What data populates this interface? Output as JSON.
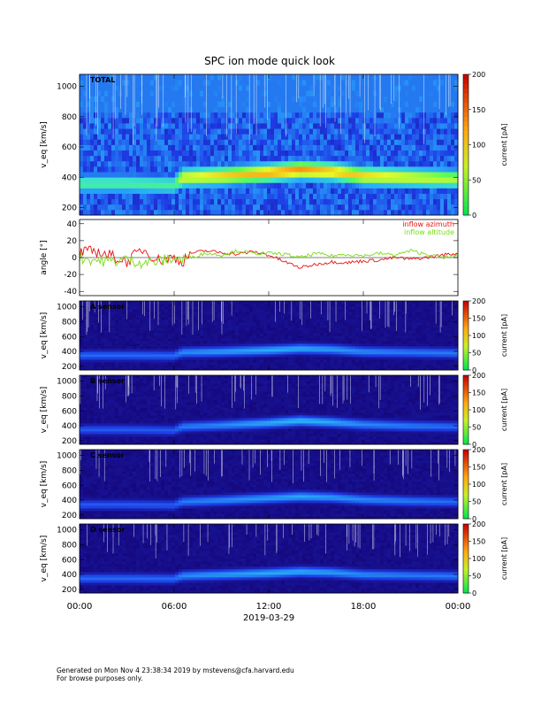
{
  "title": "SPC ion mode quick look",
  "footer": {
    "line1": "Generated on Mon Nov  4 23:38:34 2019 by mstevens@cfa.harvard.edu",
    "line2": "For browse purposes only."
  },
  "colors": {
    "azimuth": "#ee1111",
    "altitude": "#77dd11",
    "background": "#ffffff"
  },
  "chart_data": [
    {
      "type": "heatmap",
      "panel_label": "TOTAL",
      "ylabel": "v_eq [km/s]",
      "ylim": [
        150,
        1080
      ],
      "yticks": [
        200,
        400,
        600,
        800,
        1000
      ],
      "colorbar": {
        "label": "current [pA]",
        "range": [
          0,
          200
        ],
        "ticks": [
          0,
          50,
          100,
          150,
          200
        ]
      },
      "xticks": [
        "00:00",
        "06:00",
        "12:00",
        "18:00",
        "00:00"
      ],
      "hours": [
        0,
        3,
        6,
        6.5,
        9,
        12,
        14,
        16,
        18,
        21,
        24
      ],
      "peak_velocity": [
        360,
        360,
        350,
        400,
        410,
        430,
        450,
        440,
        410,
        400,
        390
      ],
      "peak_current": [
        110,
        110,
        110,
        150,
        160,
        170,
        175,
        165,
        160,
        150,
        140
      ]
    },
    {
      "type": "line",
      "ylabel": "angle [°]",
      "ylim": [
        -45,
        45
      ],
      "yticks": [
        -40,
        -20,
        0,
        20,
        40
      ],
      "xticks": [
        "00:00",
        "06:00",
        "12:00",
        "18:00",
        "00:00"
      ],
      "series": [
        {
          "name": "inflow azimuth",
          "hours": [
            0,
            1,
            2,
            3,
            4,
            5,
            6,
            6.5,
            7,
            8,
            9,
            10,
            11,
            12,
            13,
            14,
            15,
            16,
            17,
            18,
            19,
            20,
            21,
            22,
            23,
            24
          ],
          "values": [
            5,
            8,
            2,
            -5,
            10,
            -3,
            0,
            -5,
            5,
            8,
            6,
            4,
            7,
            3,
            -5,
            -12,
            -8,
            -5,
            -6,
            -4,
            -3,
            0,
            -2,
            0,
            3,
            5
          ]
        },
        {
          "name": "inflow altitude",
          "hours": [
            0,
            1,
            2,
            3,
            4,
            5,
            6,
            6.5,
            7,
            8,
            9,
            10,
            11,
            12,
            13,
            14,
            15,
            16,
            17,
            18,
            19,
            20,
            21,
            22,
            23,
            24
          ],
          "values": [
            0,
            -3,
            -5,
            -2,
            -6,
            -5,
            0,
            -3,
            0,
            5,
            3,
            8,
            5,
            5,
            4,
            0,
            5,
            2,
            4,
            2,
            5,
            3,
            8,
            4,
            0,
            2
          ]
        }
      ]
    },
    {
      "type": "heatmap",
      "panel_label": "A sensor",
      "ylabel": "v_eq [km/s]",
      "ylim": [
        150,
        1080
      ],
      "yticks": [
        200,
        400,
        600,
        800,
        1000
      ],
      "colorbar": {
        "label": "current [pA]",
        "range": [
          0,
          200
        ],
        "ticks": [
          0,
          50,
          100,
          150,
          200
        ]
      },
      "xticks": [
        "00:00",
        "06:00",
        "12:00",
        "18:00",
        "00:00"
      ],
      "hours": [
        0,
        3,
        6,
        6.5,
        9,
        12,
        14,
        16,
        18,
        21,
        24
      ],
      "peak_velocity": [
        350,
        350,
        345,
        390,
        400,
        420,
        440,
        430,
        400,
        390,
        380
      ],
      "peak_current": [
        50,
        50,
        50,
        60,
        65,
        70,
        70,
        65,
        60,
        55,
        55
      ]
    },
    {
      "type": "heatmap",
      "panel_label": "B sensor",
      "ylabel": "v_eq [km/s]",
      "ylim": [
        150,
        1080
      ],
      "yticks": [
        200,
        400,
        600,
        800,
        1000
      ],
      "colorbar": {
        "label": "current [pA]",
        "range": [
          0,
          200
        ],
        "ticks": [
          0,
          50,
          100,
          150,
          200
        ]
      },
      "xticks": [
        "00:00",
        "06:00",
        "12:00",
        "18:00",
        "00:00"
      ],
      "hours": [
        0,
        3,
        6,
        6.5,
        9,
        12,
        14,
        16,
        18,
        21,
        24
      ],
      "peak_velocity": [
        350,
        350,
        340,
        390,
        410,
        440,
        470,
        450,
        420,
        400,
        390
      ],
      "peak_current": [
        45,
        45,
        45,
        55,
        60,
        70,
        75,
        70,
        60,
        55,
        50
      ]
    },
    {
      "type": "heatmap",
      "panel_label": "C sensor",
      "ylabel": "v_eq [km/s]",
      "ylim": [
        150,
        1080
      ],
      "yticks": [
        200,
        400,
        600,
        800,
        1000
      ],
      "colorbar": {
        "label": "current [pA]",
        "range": [
          0,
          200
        ],
        "ticks": [
          0,
          50,
          100,
          150,
          200
        ]
      },
      "xticks": [
        "00:00",
        "06:00",
        "12:00",
        "18:00",
        "00:00"
      ],
      "hours": [
        0,
        3,
        6,
        6.5,
        9,
        12,
        14,
        16,
        18,
        21,
        24
      ],
      "peak_velocity": [
        340,
        340,
        335,
        380,
        400,
        430,
        450,
        440,
        410,
        390,
        380
      ],
      "peak_current": [
        45,
        45,
        45,
        55,
        60,
        65,
        70,
        65,
        60,
        55,
        50
      ]
    },
    {
      "type": "heatmap",
      "panel_label": "D sensor",
      "ylabel": "v_eq [km/s]",
      "ylim": [
        150,
        1080
      ],
      "yticks": [
        200,
        400,
        600,
        800,
        1000
      ],
      "colorbar": {
        "label": "current [pA]",
        "range": [
          0,
          200
        ],
        "ticks": [
          0,
          50,
          100,
          150,
          200
        ]
      },
      "xticks": [
        "00:00",
        "06:00",
        "12:00",
        "18:00",
        "00:00"
      ],
      "xlabel": "2019-03-29",
      "hours": [
        0,
        3,
        6,
        6.5,
        9,
        12,
        14,
        16,
        18,
        21,
        24
      ],
      "peak_velocity": [
        350,
        350,
        345,
        385,
        400,
        420,
        440,
        430,
        400,
        390,
        380
      ],
      "peak_current": [
        50,
        50,
        50,
        60,
        65,
        70,
        70,
        65,
        60,
        55,
        55
      ]
    }
  ]
}
